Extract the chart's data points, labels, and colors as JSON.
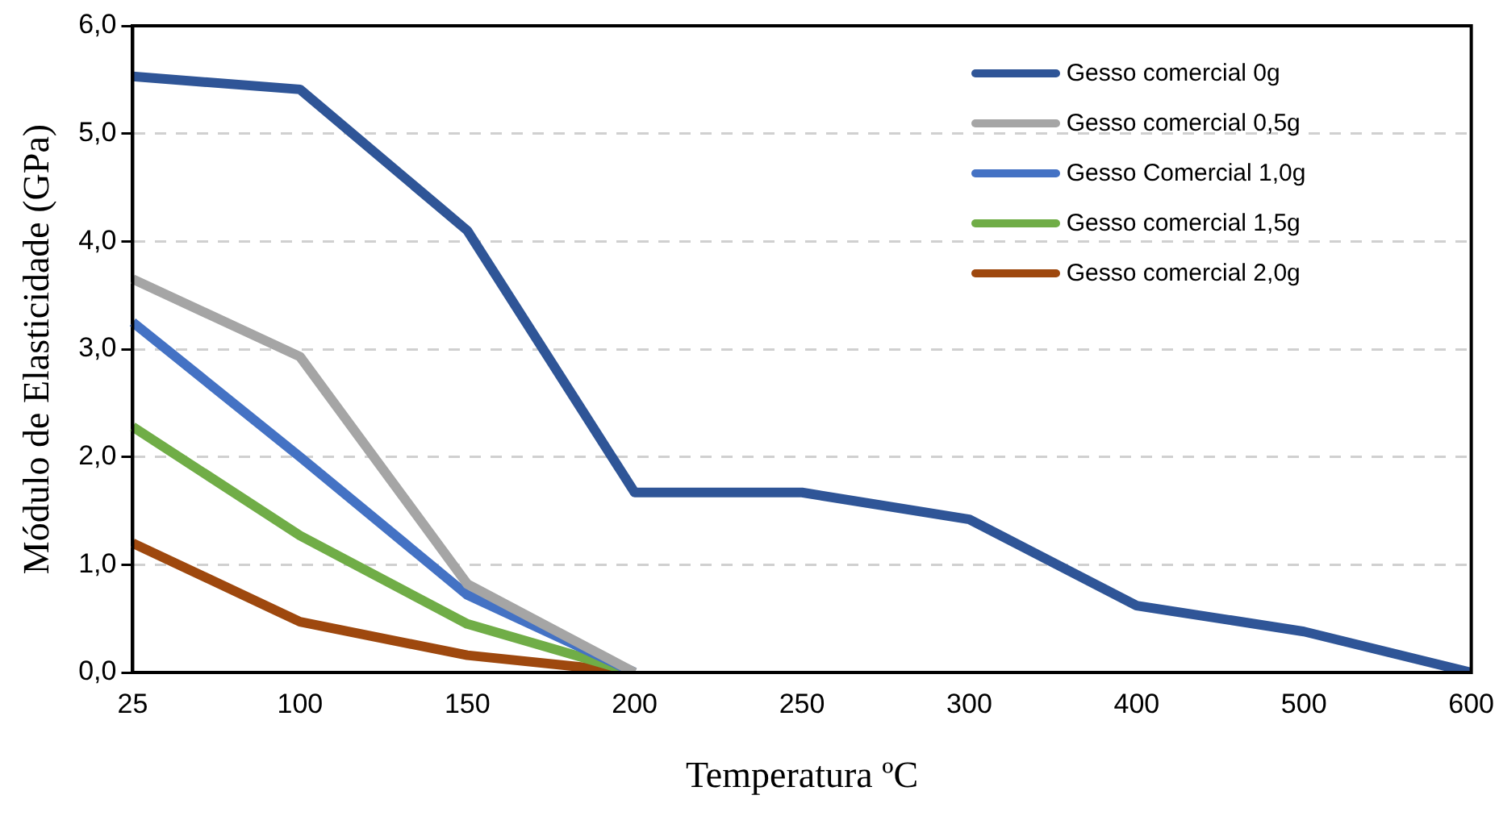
{
  "chart_data": {
    "type": "line",
    "xlabel": "Temperatura ºC",
    "ylabel": "Módulo de Elasticidade (GPa)",
    "categories": [
      "25",
      "100",
      "150",
      "200",
      "250",
      "300",
      "400",
      "500",
      "600"
    ],
    "series": [
      {
        "name": "Gesso comercial 0g",
        "color": "#2f5597",
        "values": [
          5.53,
          5.41,
          4.1,
          1.67,
          1.67,
          1.42,
          0.62,
          0.38,
          0
        ]
      },
      {
        "name": "Gesso comercial 0,5g",
        "color": "#a5a5a5",
        "values": [
          3.65,
          2.93,
          0.82,
          0,
          null,
          null,
          null,
          null,
          null
        ]
      },
      {
        "name": "Gesso Comercial 1,0g",
        "color": "#4472c4",
        "values": [
          3.25,
          2.0,
          0.72,
          0,
          null,
          null,
          null,
          null,
          null
        ]
      },
      {
        "name": "Gesso comercial 1,5g",
        "color": "#70ad47",
        "values": [
          2.28,
          1.27,
          0.45,
          0,
          null,
          null,
          null,
          null,
          null
        ]
      },
      {
        "name": "Gesso comercial 2,0g",
        "color": "#9e480e",
        "values": [
          1.2,
          0.47,
          0.16,
          0,
          null,
          null,
          null,
          null,
          null
        ]
      }
    ],
    "ylim": [
      0,
      6
    ],
    "yticks": [
      {
        "value": 0,
        "label": "0,0"
      },
      {
        "value": 1,
        "label": "1,0"
      },
      {
        "value": 2,
        "label": "2,0"
      },
      {
        "value": 3,
        "label": "3,0"
      },
      {
        "value": 4,
        "label": "4,0"
      },
      {
        "value": 5,
        "label": "5,0"
      },
      {
        "value": 6,
        "label": "6,0"
      }
    ],
    "grid": "y",
    "legend": "top right",
    "marker": "none",
    "line_style": "solid"
  }
}
